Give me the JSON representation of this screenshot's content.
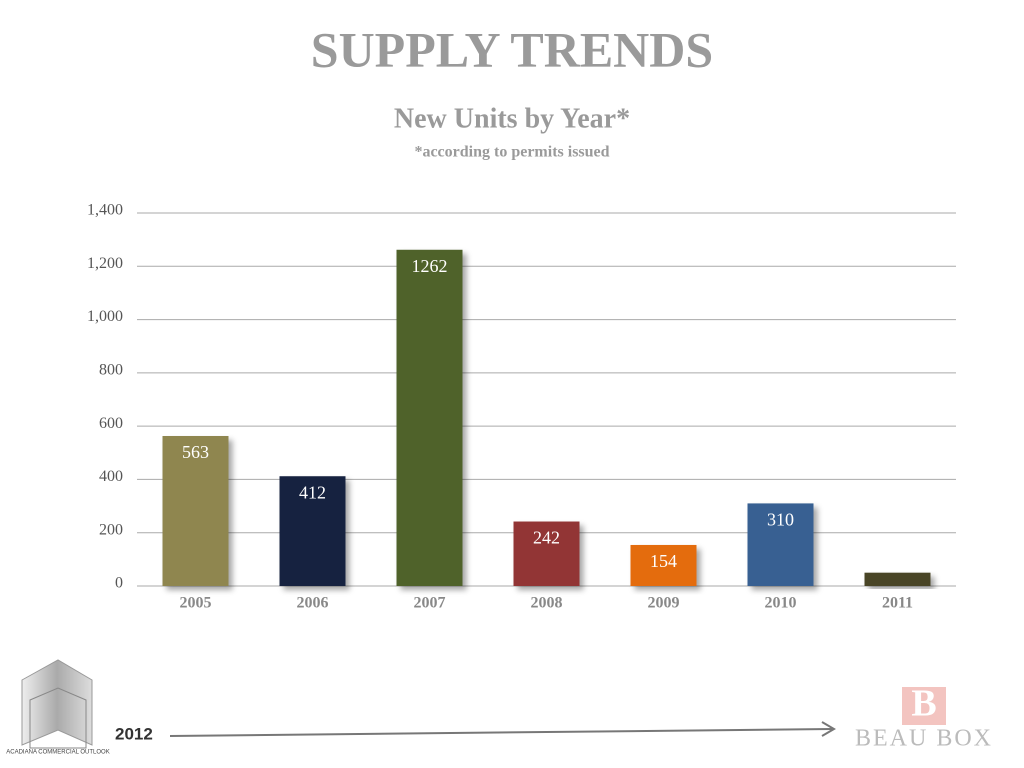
{
  "chart_data": {
    "type": "bar",
    "title": "SUPPLY TRENDS",
    "subtitle": "New Units by Year*",
    "note": "*according to permits issued",
    "categories": [
      "2005",
      "2006",
      "2007",
      "2008",
      "2009",
      "2010",
      "2011"
    ],
    "values": [
      563,
      412,
      1262,
      242,
      154,
      310,
      50
    ],
    "value_labels": [
      "563",
      "412",
      "1262",
      "242",
      "154",
      "310",
      null
    ],
    "colors": [
      "#8f8650",
      "#13233f",
      "#4f6229",
      "#923534",
      "#e46c0a",
      "#376092",
      "#4a4528"
    ],
    "ylim": [
      0,
      1400
    ],
    "yticks": [
      0,
      200,
      400,
      600,
      800,
      {
        "value": 1000,
        "label": "1,000"
      },
      {
        "value": 1200,
        "label": "1,200"
      },
      {
        "value": 1400,
        "label": "1,400"
      }
    ],
    "grid": true
  },
  "footer": {
    "year": "2012",
    "brand": "BEAU BOX",
    "brand_mark": "B",
    "logo_text": "ACADIANA COMMERCIAL OUTLOOK"
  }
}
